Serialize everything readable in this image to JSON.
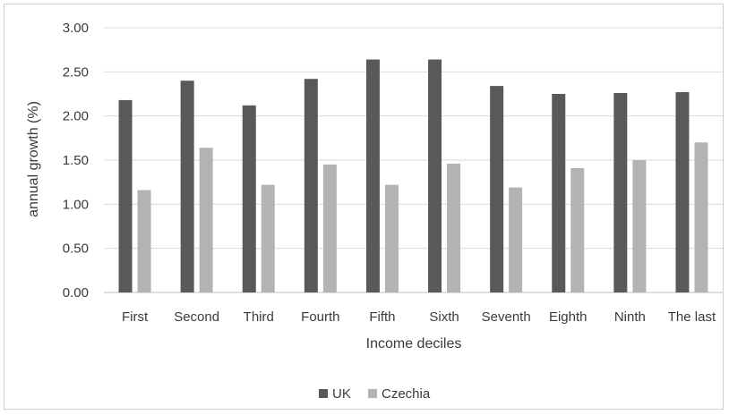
{
  "chart_data": {
    "type": "bar",
    "title": "",
    "xlabel": "Income deciles",
    "ylabel": "annual growth (%)",
    "ylim": [
      0,
      3
    ],
    "ytick_step": 0.5,
    "ytick_labels": [
      "0.00",
      "0.50",
      "1.00",
      "1.50",
      "2.00",
      "2.50",
      "3.00"
    ],
    "grid": true,
    "legend_position": "bottom",
    "categories": [
      "First",
      "Second",
      "Third",
      "Fourth",
      "Fifth",
      "Sixth",
      "Seventh",
      "Eighth",
      "Ninth",
      "The last"
    ],
    "series": [
      {
        "name": "UK",
        "color": "#595959",
        "values": [
          2.18,
          2.4,
          2.12,
          2.42,
          2.64,
          2.64,
          2.34,
          2.25,
          2.26,
          2.27
        ]
      },
      {
        "name": "Czechia",
        "color": "#b3b3b3",
        "values": [
          1.16,
          1.64,
          1.22,
          1.45,
          1.22,
          1.46,
          1.19,
          1.41,
          1.5,
          1.7
        ]
      }
    ]
  }
}
